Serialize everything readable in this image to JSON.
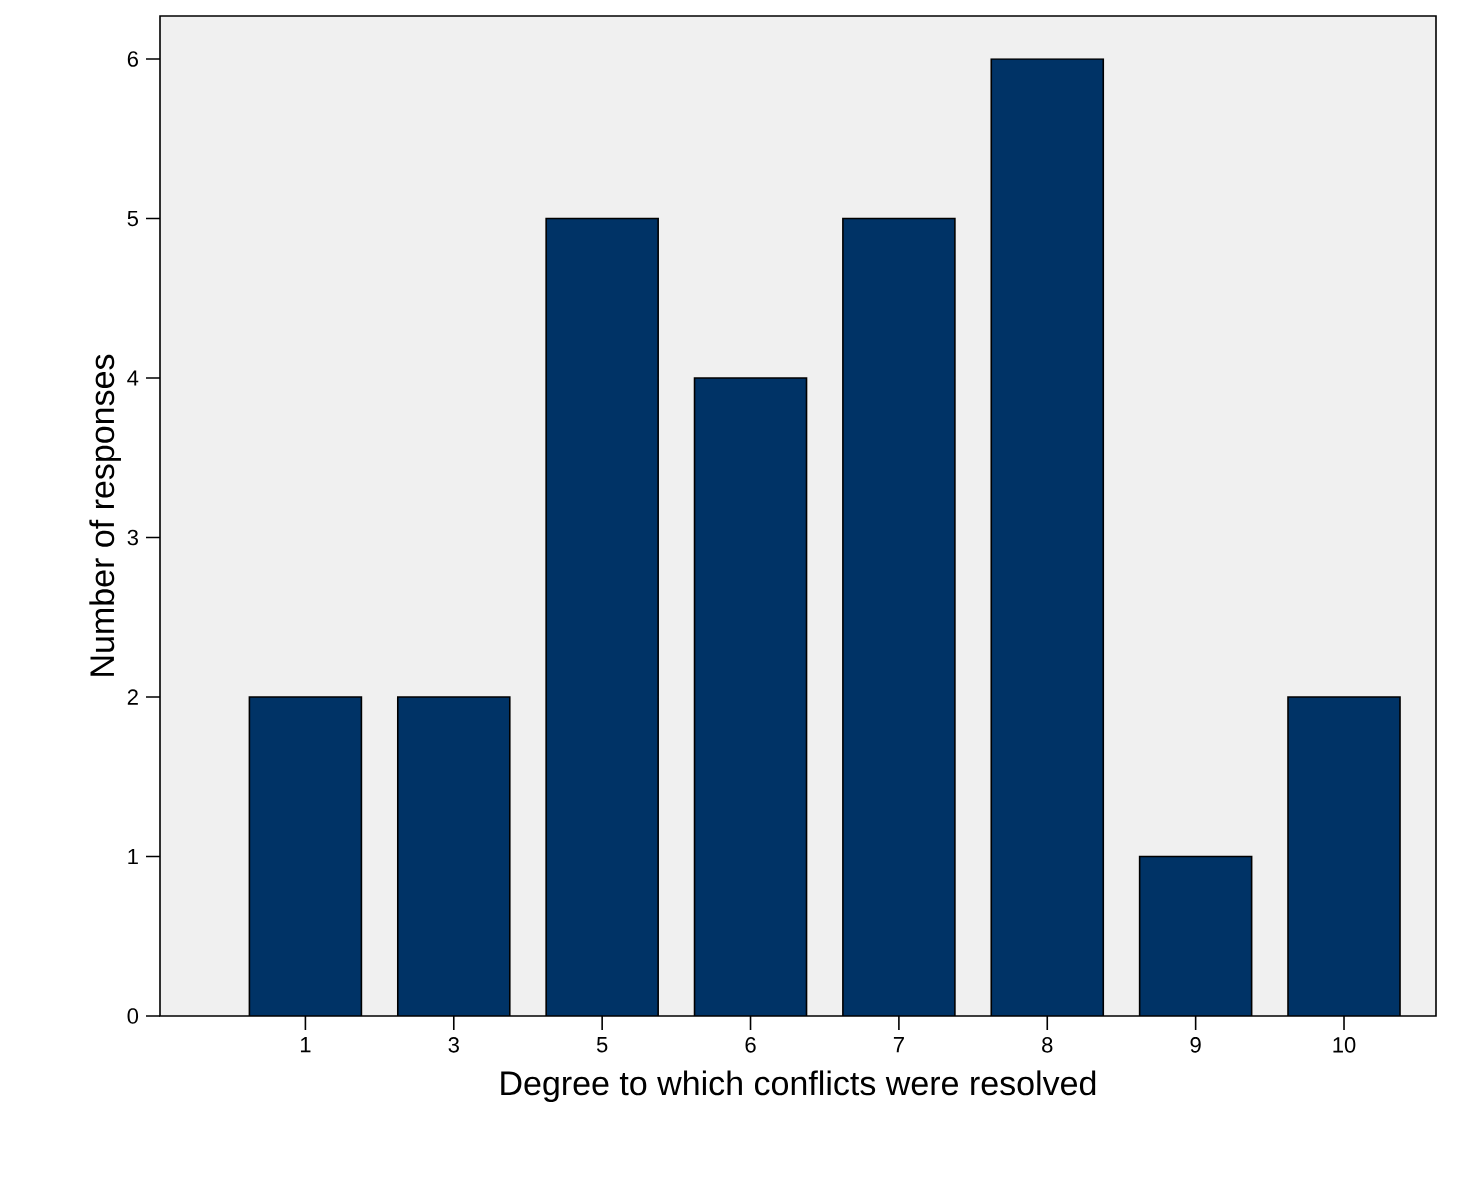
{
  "chart_data": {
    "type": "bar",
    "xlabel": "Degree to which conflicts were resolved",
    "ylabel": "Number of responses",
    "categories": [
      "1",
      "3",
      "5",
      "6",
      "7",
      "8",
      "9",
      "10"
    ],
    "values": [
      2,
      2,
      5,
      4,
      5,
      6,
      1,
      2
    ],
    "color": "#003366",
    "ylim": [
      0,
      6.27
    ],
    "yticks": [
      0,
      1,
      2,
      3,
      4,
      5,
      6
    ]
  }
}
